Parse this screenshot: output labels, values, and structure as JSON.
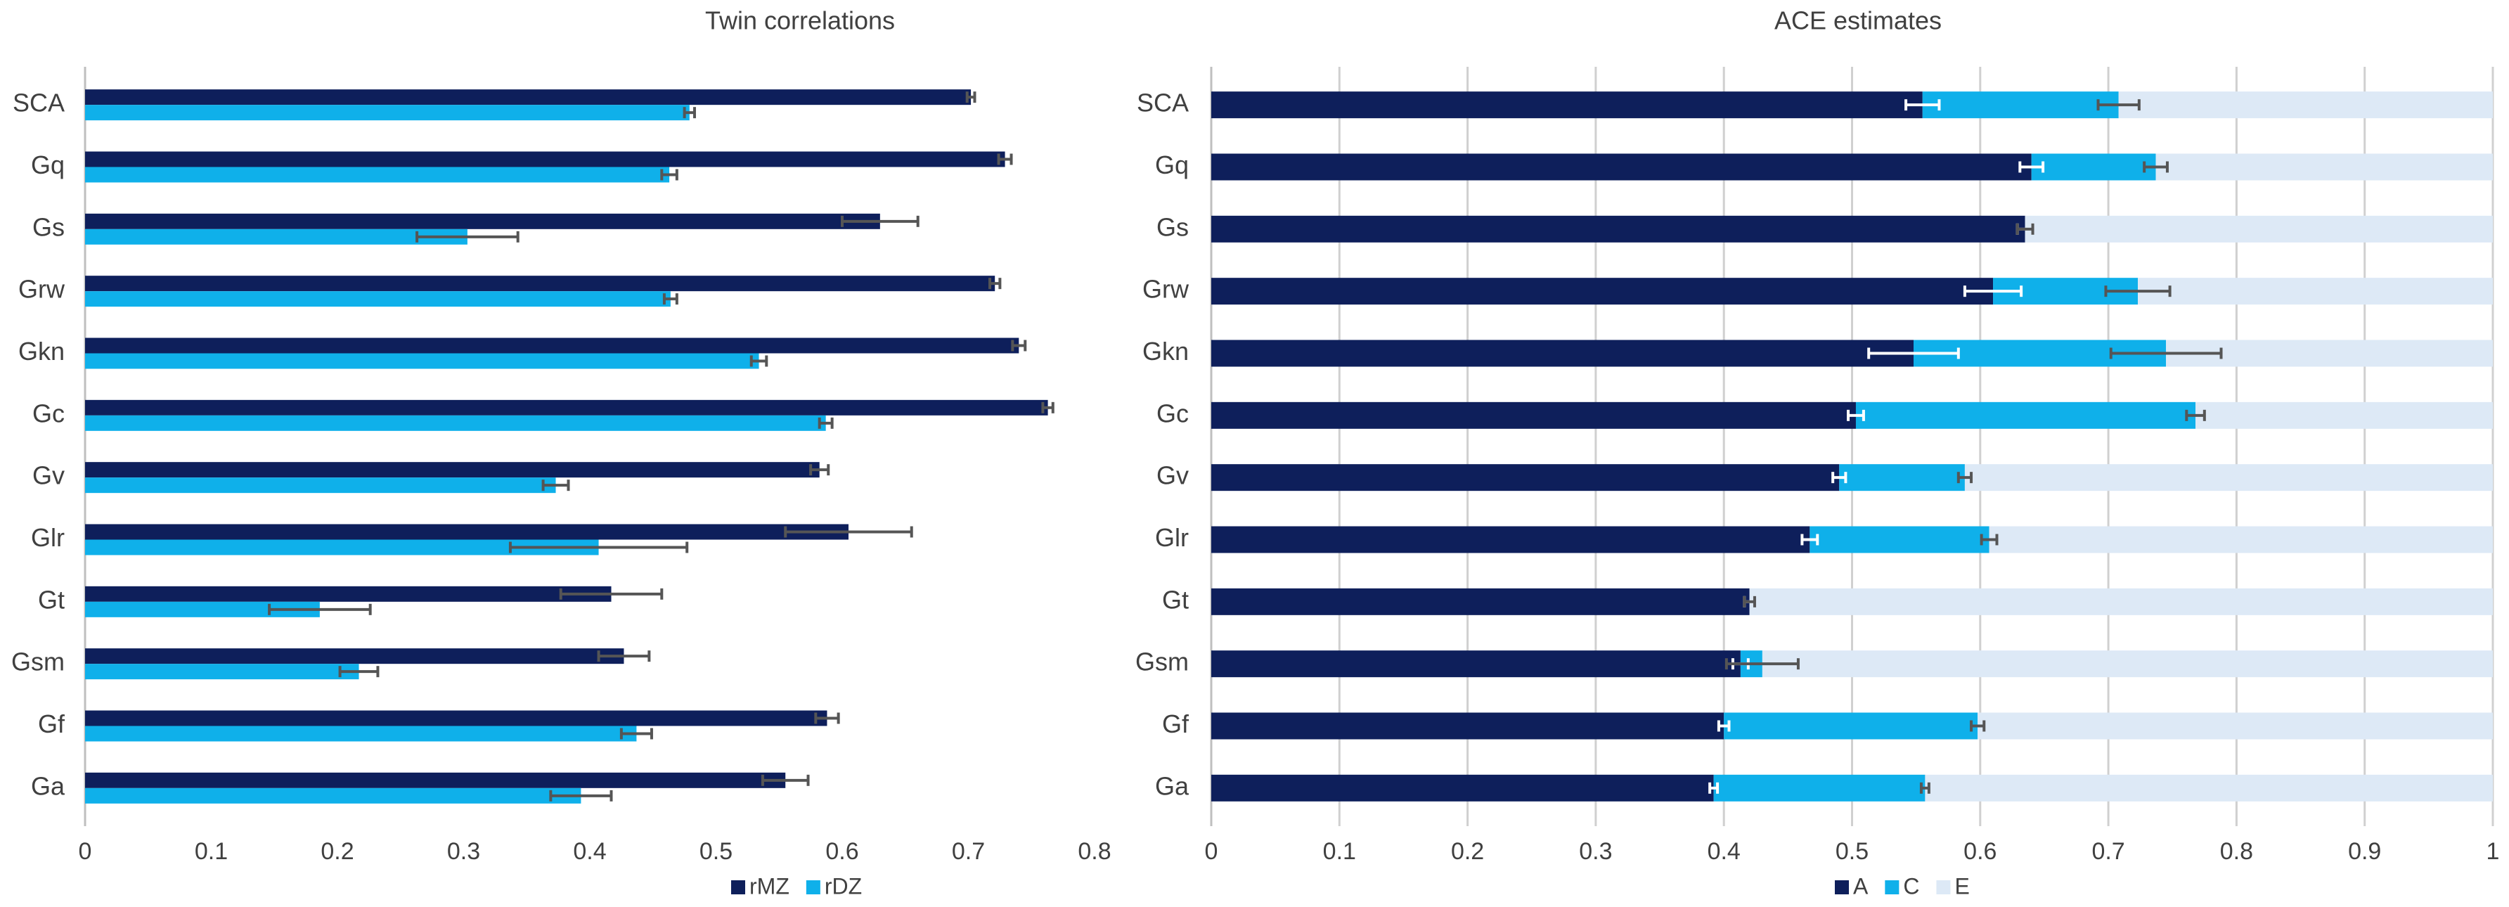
{
  "chart_data": [
    {
      "type": "grouped_hbar",
      "title": "Twin correlations",
      "categories": [
        "SCA",
        "Gq",
        "Gs",
        "Grw",
        "Gkn",
        "Gc",
        "Gv",
        "Glr",
        "Gt",
        "Gsm",
        "Gf",
        "Ga"
      ],
      "series": [
        {
          "name": "rMZ",
          "color": "#0e1f5b",
          "values": [
            0.702,
            0.729,
            0.63,
            0.721,
            0.74,
            0.763,
            0.582,
            0.605,
            0.417,
            0.427,
            0.588,
            0.555
          ],
          "errors": [
            0.003,
            0.005,
            0.03,
            0.004,
            0.005,
            0.004,
            0.007,
            0.05,
            0.04,
            0.02,
            0.009,
            0.018
          ]
        },
        {
          "name": "rDZ",
          "color": "#0fb0ea",
          "values": [
            0.479,
            0.463,
            0.303,
            0.464,
            0.534,
            0.587,
            0.373,
            0.407,
            0.186,
            0.217,
            0.437,
            0.393
          ],
          "errors": [
            0.004,
            0.006,
            0.04,
            0.005,
            0.006,
            0.005,
            0.01,
            0.07,
            0.04,
            0.015,
            0.012,
            0.024
          ]
        }
      ],
      "xlim": [
        0,
        0.8
      ],
      "xticks": [
        0,
        0.1,
        0.2,
        0.3,
        0.4,
        0.5,
        0.6,
        0.7,
        0.8
      ],
      "grid": false,
      "legend": "bottom"
    },
    {
      "type": "stacked_hbar",
      "title": "ACE estimates",
      "categories": [
        "SCA",
        "Gq",
        "Gs",
        "Grw",
        "Gkn",
        "Gc",
        "Gv",
        "Glr",
        "Gt",
        "Gsm",
        "Gf",
        "Ga"
      ],
      "series": [
        {
          "name": "A",
          "color": "#0e1f5b",
          "values": [
            0.555,
            0.64,
            0.635,
            0.61,
            0.548,
            0.503,
            0.49,
            0.467,
            0.42,
            0.413,
            0.4,
            0.392
          ],
          "errors": [
            0.013,
            0.009,
            0.006,
            0.022,
            0.035,
            0.006,
            0.005,
            0.006,
            0.004,
            0.006,
            0.004,
            0.003
          ],
          "error_color": "#ffffff"
        },
        {
          "name": "C",
          "color": "#0fb0ea",
          "values": [
            0.153,
            0.097,
            0,
            0.113,
            0.197,
            0.265,
            0.098,
            0.14,
            0,
            0.017,
            0.198,
            0.165
          ],
          "errors": [
            0.016,
            0.009,
            0.006,
            0.025,
            0.043,
            0.007,
            0.005,
            0.006,
            0.004,
            0.028,
            0.005,
            0.003
          ],
          "error_color": "#555555"
        },
        {
          "name": "E",
          "color": "#dde9f6",
          "values": [
            0.292,
            0.263,
            0.365,
            0.277,
            0.255,
            0.232,
            0.412,
            0.393,
            0.58,
            0.57,
            0.402,
            0.443
          ]
        }
      ],
      "xlim": [
        0,
        1
      ],
      "xticks": [
        0,
        0.1,
        0.2,
        0.3,
        0.4,
        0.5,
        0.6,
        0.7,
        0.8,
        0.9,
        1
      ],
      "grid": true,
      "legend": "bottom"
    }
  ]
}
